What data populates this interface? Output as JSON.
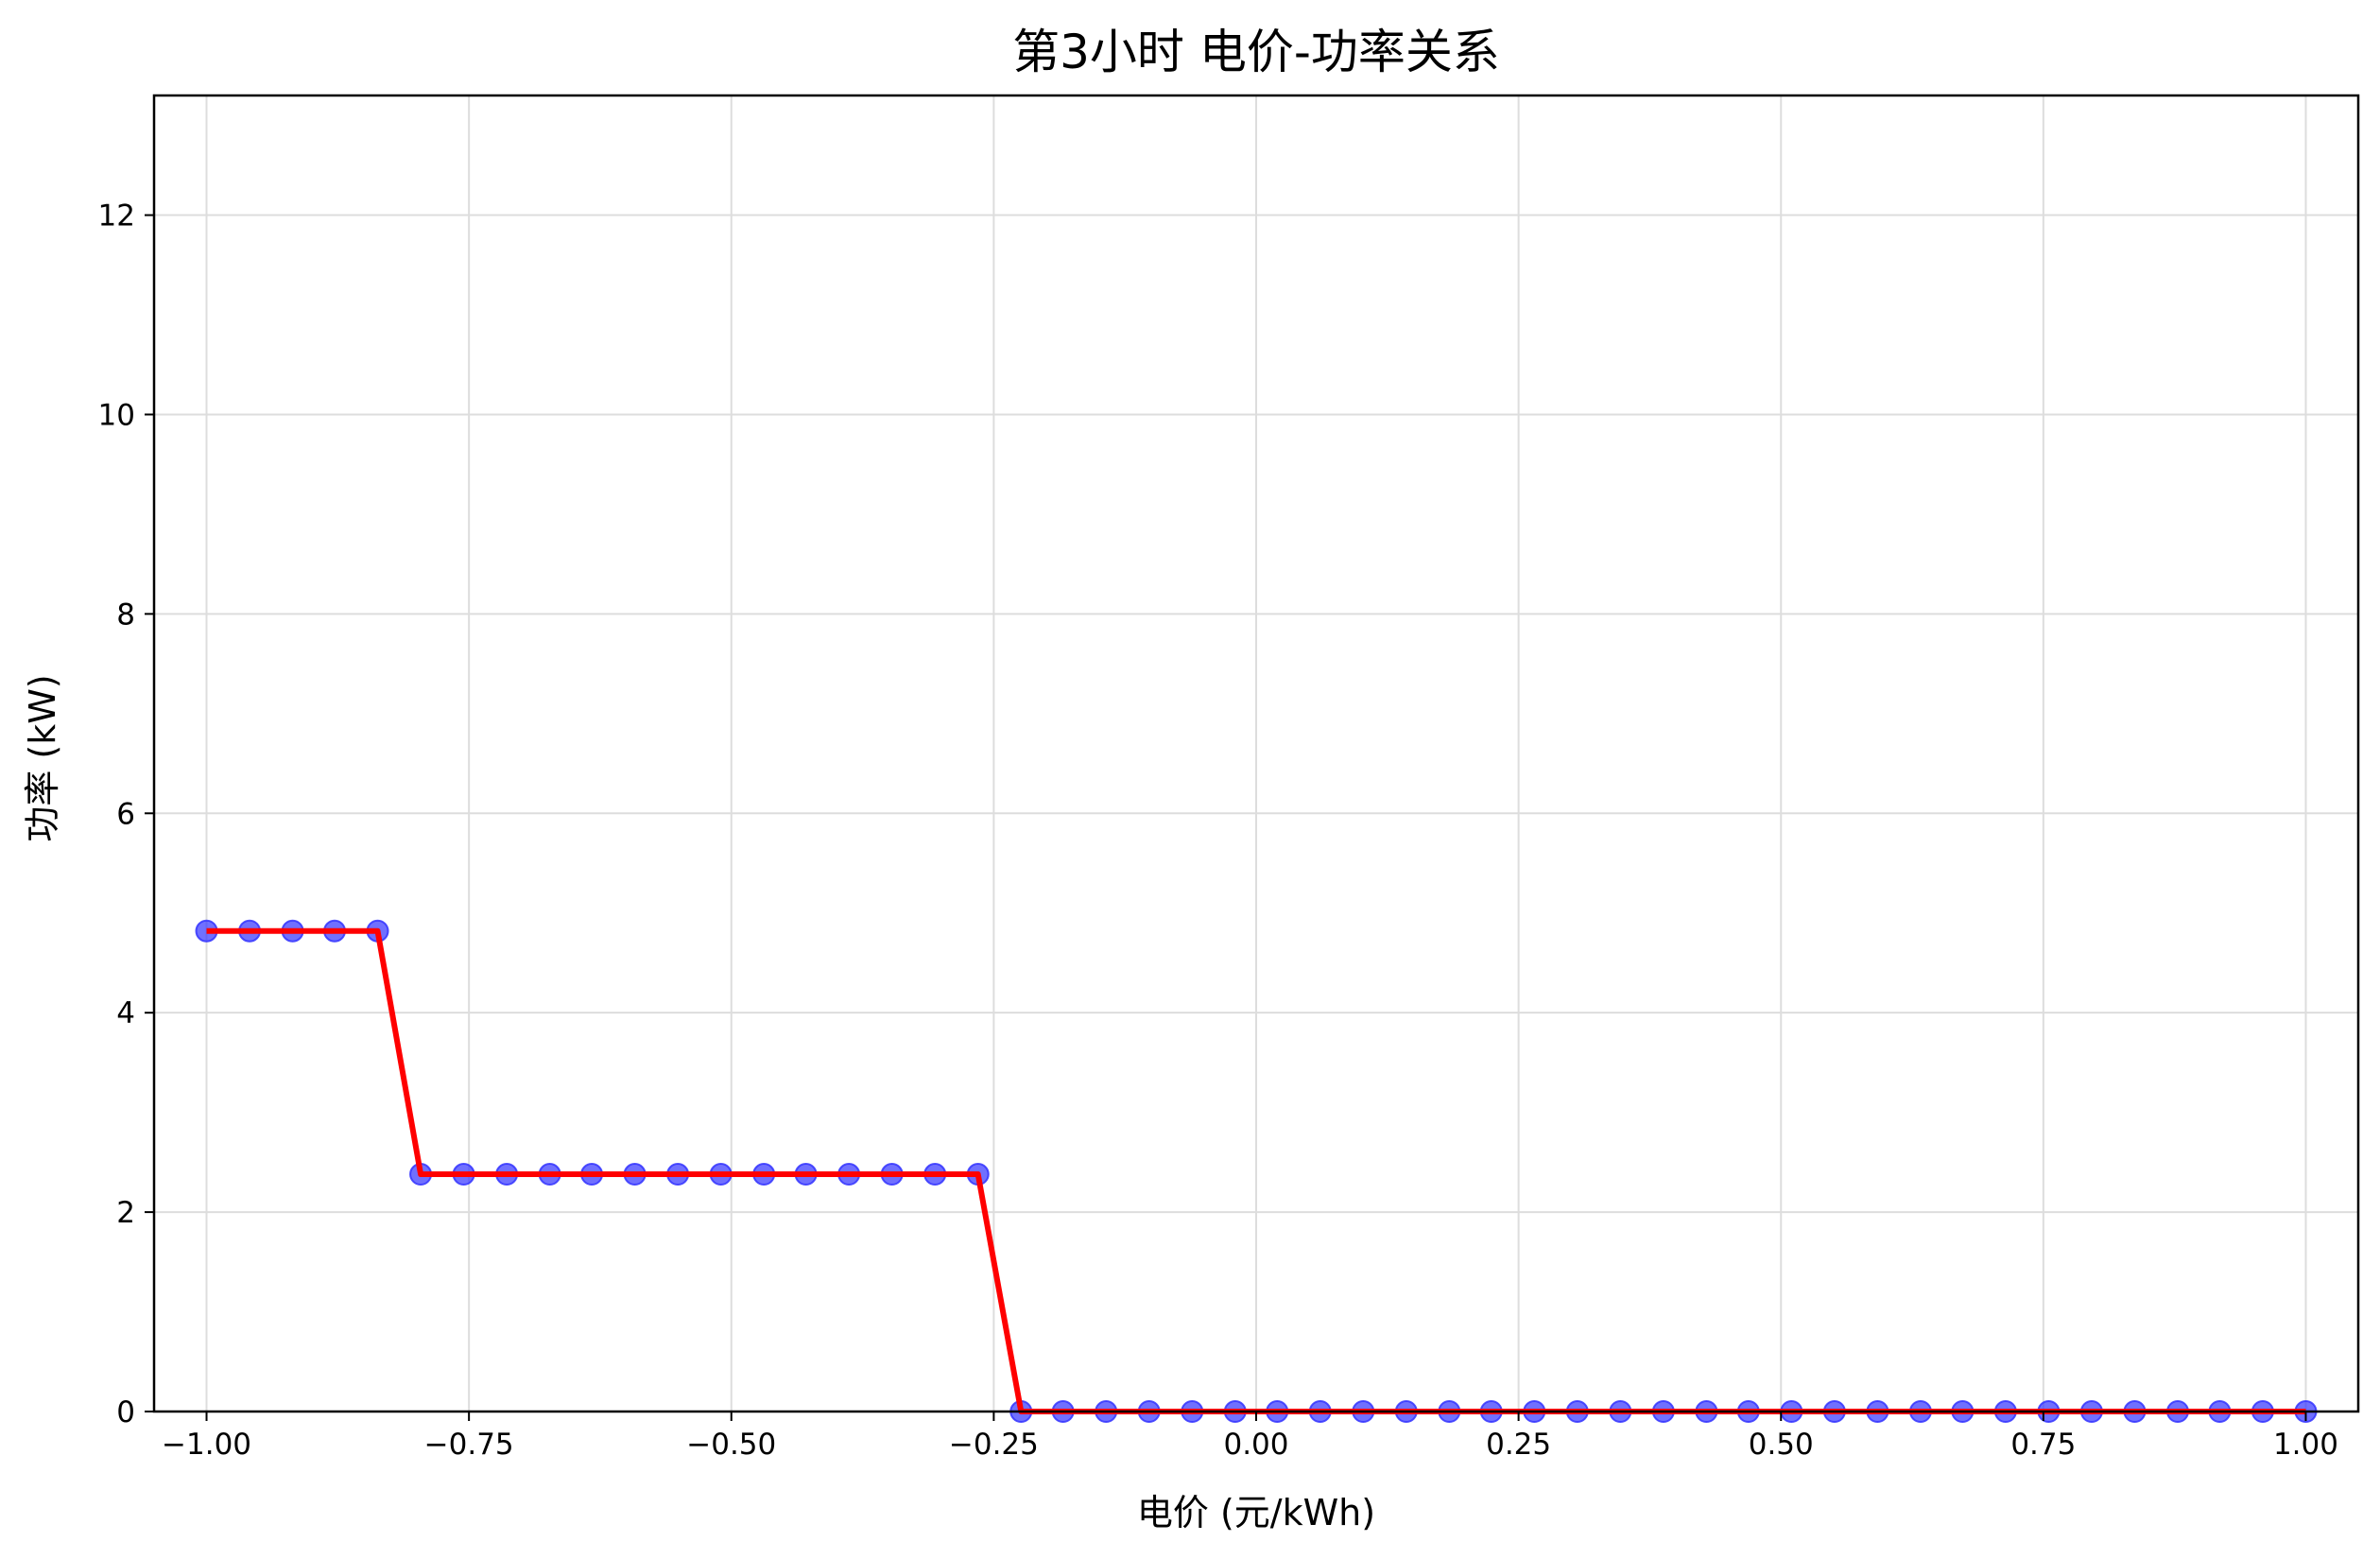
{
  "chart_data": {
    "type": "line",
    "title": "第3小时 电价-功率关系",
    "xlabel": "电价 (元/kWh)",
    "ylabel": "功率 (kW)",
    "xlim": [
      -1.05,
      1.05
    ],
    "ylim": [
      0,
      13.2
    ],
    "grid": true,
    "legend": "none",
    "x_ticks": [
      -1.0,
      -0.75,
      -0.5,
      -0.25,
      0.0,
      0.25,
      0.5,
      0.75,
      1.0
    ],
    "x_tick_labels": [
      "−1.00",
      "−0.75",
      "−0.50",
      "−0.25",
      "0.00",
      "0.25",
      "0.50",
      "0.75",
      "1.00"
    ],
    "y_ticks": [
      0,
      2,
      4,
      6,
      8,
      10,
      12
    ],
    "y_tick_labels": [
      "0",
      "2",
      "4",
      "6",
      "8",
      "10",
      "12"
    ],
    "series": [
      {
        "line_color": "#ff0000",
        "marker_color": "#3333ff",
        "x": [
          -1.0,
          -0.959,
          -0.918,
          -0.878,
          -0.837,
          -0.796,
          -0.755,
          -0.714,
          -0.673,
          -0.633,
          -0.592,
          -0.551,
          -0.51,
          -0.469,
          -0.429,
          -0.388,
          -0.347,
          -0.306,
          -0.265,
          -0.224,
          -0.184,
          -0.143,
          -0.102,
          -0.061,
          -0.02,
          0.02,
          0.061,
          0.102,
          0.143,
          0.184,
          0.224,
          0.265,
          0.306,
          0.347,
          0.388,
          0.429,
          0.469,
          0.51,
          0.551,
          0.592,
          0.633,
          0.673,
          0.714,
          0.755,
          0.796,
          0.837,
          0.878,
          0.918,
          0.959,
          1.0
        ],
        "y": [
          4.82,
          4.82,
          4.82,
          4.82,
          4.82,
          2.38,
          2.38,
          2.38,
          2.38,
          2.38,
          2.38,
          2.38,
          2.38,
          2.38,
          2.38,
          2.38,
          2.38,
          2.38,
          2.38,
          0,
          0,
          0,
          0,
          0,
          0,
          0,
          0,
          0,
          0,
          0,
          0,
          0,
          0,
          0,
          0,
          0,
          0,
          0,
          0,
          0,
          0,
          0,
          0,
          0,
          0,
          0,
          0,
          0,
          0,
          0
        ]
      }
    ]
  }
}
